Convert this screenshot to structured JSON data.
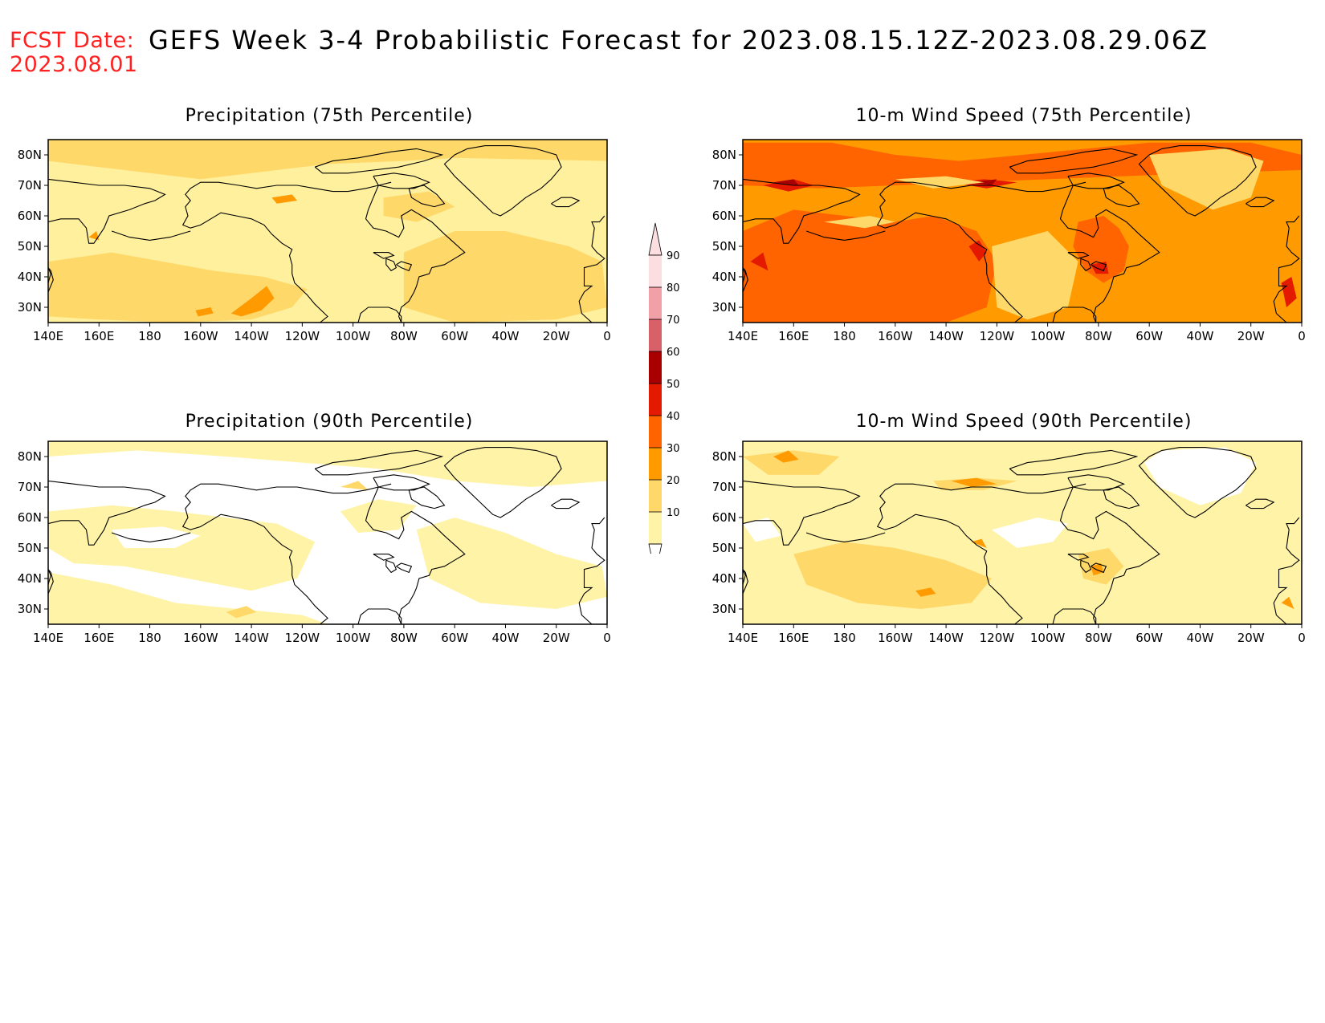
{
  "header": {
    "fcst_label": "FCST Date:",
    "fcst_date": "2023.08.01",
    "title": "GEFS Week 3-4 Probabilistic Forecast for 2023.08.15.12Z-2023.08.29.06Z"
  },
  "axes": {
    "lon_ticks": [
      "140E",
      "160E",
      "180",
      "160W",
      "140W",
      "120W",
      "100W",
      "80W",
      "60W",
      "40W",
      "20W",
      "0"
    ],
    "lat_ticks": [
      "80N",
      "70N",
      "60N",
      "50N",
      "40N",
      "30N"
    ],
    "lat_range": [
      25,
      85
    ],
    "lon_range_east": [
      140,
      360
    ]
  },
  "panels": [
    {
      "id": "precip75",
      "title": "Precipitation (75th Percentile)",
      "base": "#fff09e"
    },
    {
      "id": "wind75",
      "title": "10-m Wind Speed (75th Percentile)",
      "base": "#ff9b00"
    },
    {
      "id": "precip90",
      "title": "Precipitation (90th Percentile)",
      "base": "#ffffff"
    },
    {
      "id": "wind90",
      "title": "10-m Wind Speed (90th Percentile)",
      "base": "#fff3a8"
    }
  ],
  "colorbar": {
    "labels": [
      "90",
      "80",
      "70",
      "60",
      "50",
      "40",
      "30",
      "20",
      "10"
    ],
    "colors": [
      "#fcdde0",
      "#f2a0a8",
      "#d86068",
      "#a80000",
      "#e41a00",
      "#ff6400",
      "#ff9b00",
      "#ffd86a",
      "#fff3a8"
    ]
  },
  "legend_colors": {
    "white": "#ffffff",
    "light_yellow": "#fff3a8",
    "yellow": "#ffd86a",
    "orange": "#ff9b00",
    "dark_orange": "#ff6400",
    "red": "#e41a00",
    "dark_red": "#a80000"
  }
}
